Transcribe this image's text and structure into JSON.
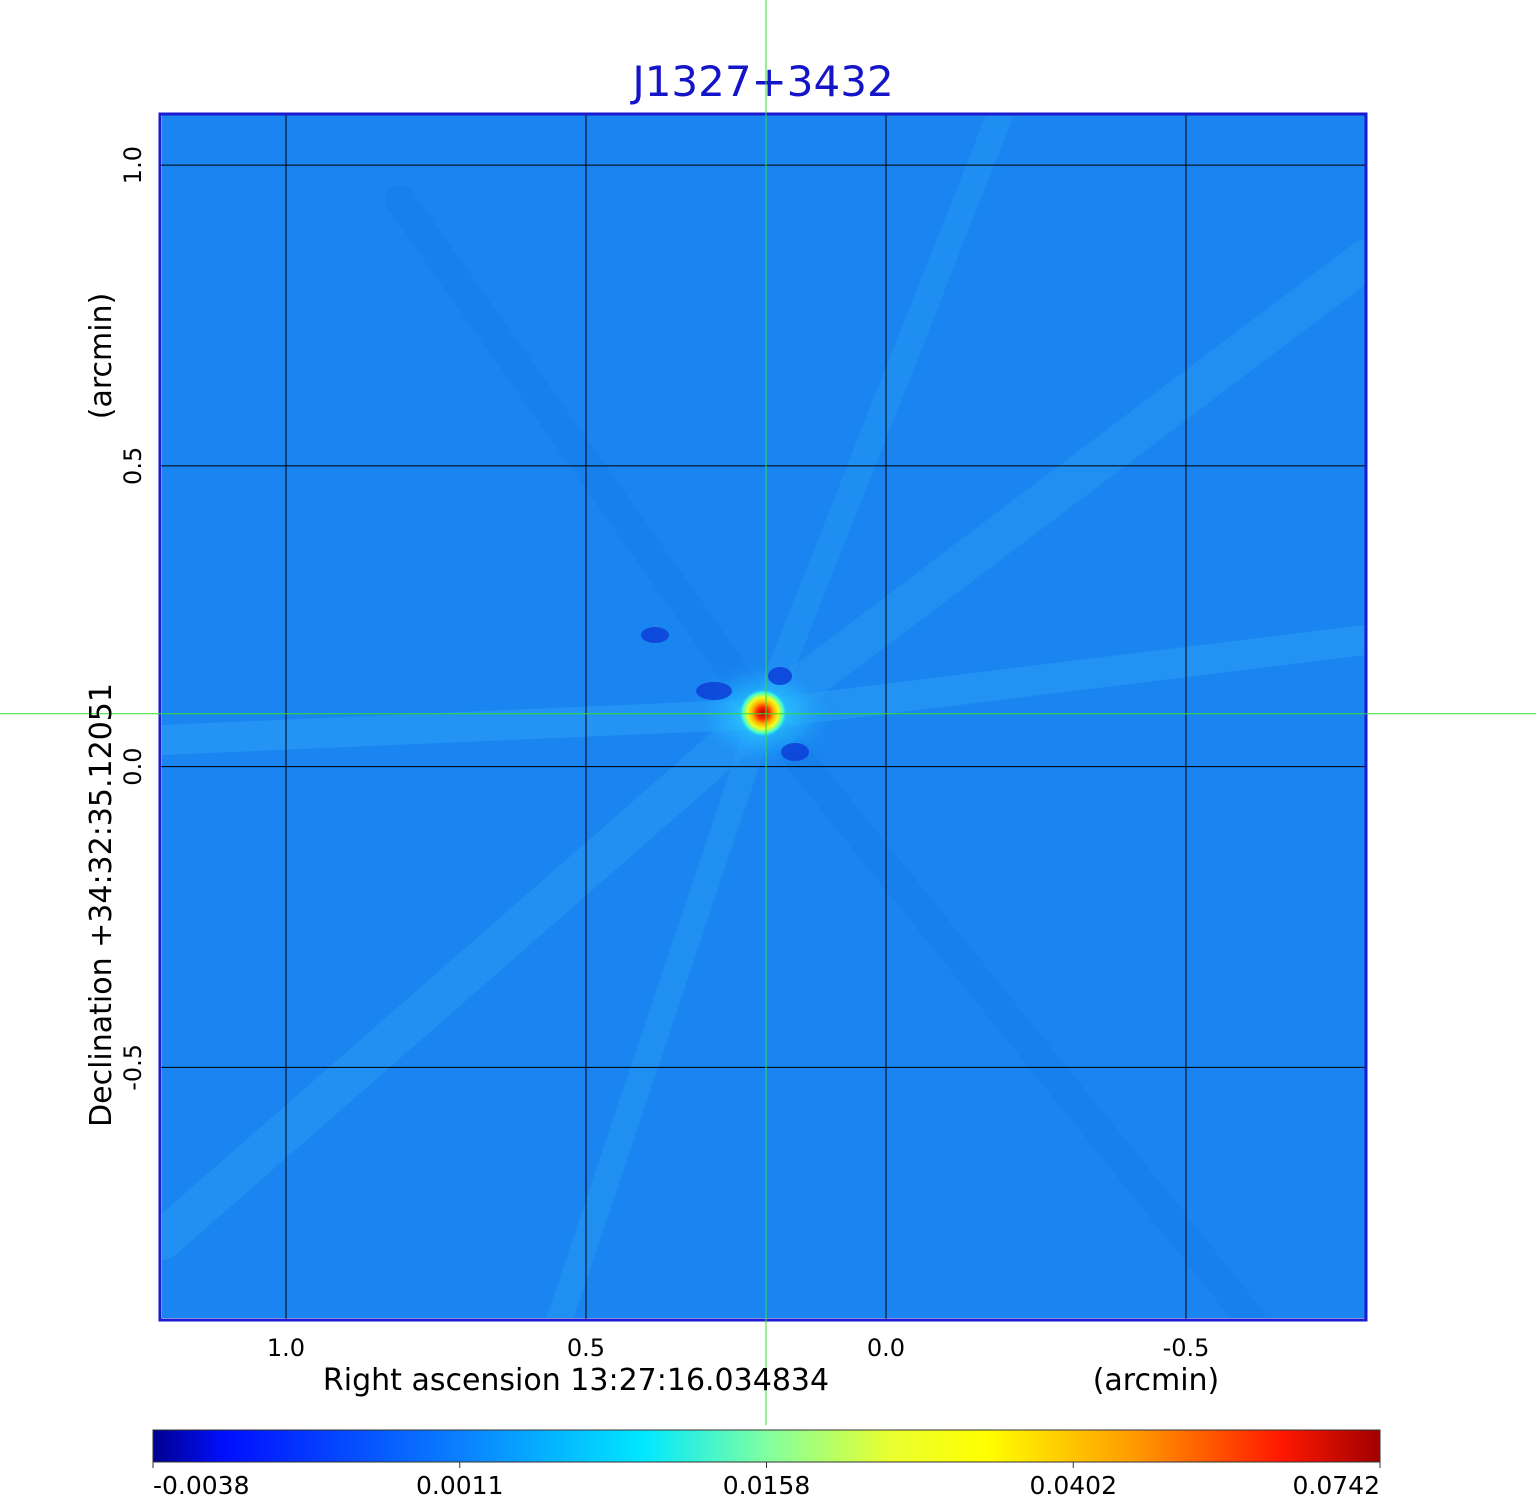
{
  "chart_data": {
    "type": "heatmap",
    "title": "J1327+3432",
    "xlabel": "Right ascension  13:27:16.034834",
    "xunit": "(arcmin)",
    "ylabel": "Declination  +34:32:35.12051",
    "yunit": "(arcmin)",
    "x_ticks": [
      {
        "value": 1.0,
        "label": "1.0"
      },
      {
        "value": 0.5,
        "label": "0.5"
      },
      {
        "value": 0.0,
        "label": "0.0"
      },
      {
        "value": -0.5,
        "label": "-0.5"
      }
    ],
    "y_ticks": [
      {
        "value": 1.0,
        "label": "1.0"
      },
      {
        "value": 0.5,
        "label": "0.5"
      },
      {
        "value": 0.0,
        "label": "0.0"
      },
      {
        "value": -0.5,
        "label": "-0.5"
      }
    ],
    "xlim": [
      1.21,
      -0.8
    ],
    "ylim": [
      -0.92,
      1.085
    ],
    "x_direction": "decreasing-right",
    "grid": true,
    "crosshair": {
      "x": 0.2,
      "y": 0.088,
      "color": "#33dd33"
    },
    "source_peak": {
      "x": 0.2,
      "y": 0.088,
      "value": 0.0742
    },
    "colormap": "jet",
    "colorbar": {
      "position": "bottom",
      "ticks": [
        "-0.0038",
        "0.0011",
        "0.0158",
        "0.0402",
        "0.0742"
      ]
    },
    "colors": {
      "title": "#1414c8",
      "frame": "#1a1ad0",
      "background_level": "#1a85f0",
      "grid": "#000000"
    }
  }
}
